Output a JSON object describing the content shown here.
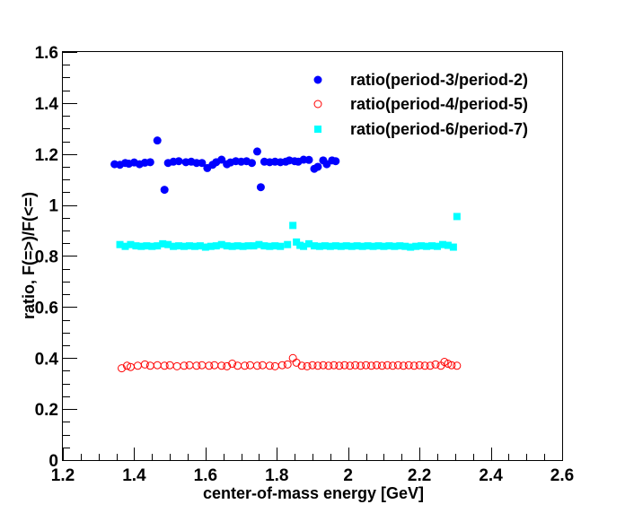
{
  "chart_data": {
    "type": "scatter",
    "xlabel": "center-of-mass energy [GeV]",
    "ylabel": "ratio, F(=>)/F(<=)",
    "xlim": [
      1.2,
      2.6
    ],
    "ylim": [
      0,
      1.6
    ],
    "x_ticks": [
      "1.2",
      "1.4",
      "1.6",
      "1.8",
      "2",
      "2.2",
      "2.4",
      "2.6"
    ],
    "y_ticks": [
      "0",
      "0.2",
      "0.4",
      "0.6",
      "0.8",
      "1",
      "1.2",
      "1.4",
      "1.6"
    ],
    "grid": false,
    "legend_position": "top-right",
    "series": [
      {
        "name": "ratio(period-3/period-2)",
        "marker": "filled-circle",
        "color": "#0000ff",
        "points": [
          [
            1.345,
            1.16
          ],
          [
            1.36,
            1.158
          ],
          [
            1.375,
            1.165
          ],
          [
            1.385,
            1.162
          ],
          [
            1.4,
            1.167
          ],
          [
            1.415,
            1.16
          ],
          [
            1.43,
            1.166
          ],
          [
            1.445,
            1.168
          ],
          [
            1.465,
            1.253
          ],
          [
            1.485,
            1.06
          ],
          [
            1.495,
            1.165
          ],
          [
            1.51,
            1.17
          ],
          [
            1.525,
            1.172
          ],
          [
            1.545,
            1.168
          ],
          [
            1.56,
            1.17
          ],
          [
            1.575,
            1.165
          ],
          [
            1.59,
            1.165
          ],
          [
            1.605,
            1.145
          ],
          [
            1.62,
            1.158
          ],
          [
            1.63,
            1.168
          ],
          [
            1.645,
            1.178
          ],
          [
            1.66,
            1.16
          ],
          [
            1.67,
            1.167
          ],
          [
            1.685,
            1.172
          ],
          [
            1.7,
            1.17
          ],
          [
            1.715,
            1.172
          ],
          [
            1.73,
            1.165
          ],
          [
            1.745,
            1.21
          ],
          [
            1.755,
            1.07
          ],
          [
            1.765,
            1.17
          ],
          [
            1.78,
            1.168
          ],
          [
            1.795,
            1.17
          ],
          [
            1.81,
            1.168
          ],
          [
            1.825,
            1.17
          ],
          [
            1.835,
            1.175
          ],
          [
            1.85,
            1.172
          ],
          [
            1.86,
            1.17
          ],
          [
            1.875,
            1.178
          ],
          [
            1.89,
            1.177
          ],
          [
            1.905,
            1.142
          ],
          [
            1.915,
            1.15
          ],
          [
            1.93,
            1.175
          ],
          [
            1.94,
            1.16
          ],
          [
            1.955,
            1.175
          ],
          [
            1.965,
            1.172
          ]
        ]
      },
      {
        "name": "ratio(period-4/period-5)",
        "marker": "open-circle",
        "color": "#ff0000",
        "points": [
          [
            1.365,
            0.36
          ],
          [
            1.38,
            0.37
          ],
          [
            1.39,
            0.365
          ],
          [
            1.41,
            0.37
          ],
          [
            1.43,
            0.375
          ],
          [
            1.445,
            0.37
          ],
          [
            1.465,
            0.372
          ],
          [
            1.485,
            0.37
          ],
          [
            1.5,
            0.372
          ],
          [
            1.52,
            0.368
          ],
          [
            1.54,
            0.37
          ],
          [
            1.555,
            0.372
          ],
          [
            1.575,
            0.37
          ],
          [
            1.59,
            0.372
          ],
          [
            1.61,
            0.37
          ],
          [
            1.625,
            0.372
          ],
          [
            1.645,
            0.37
          ],
          [
            1.66,
            0.368
          ],
          [
            1.675,
            0.378
          ],
          [
            1.69,
            0.37
          ],
          [
            1.71,
            0.37
          ],
          [
            1.725,
            0.372
          ],
          [
            1.745,
            0.37
          ],
          [
            1.76,
            0.372
          ],
          [
            1.78,
            0.37
          ],
          [
            1.795,
            0.368
          ],
          [
            1.815,
            0.372
          ],
          [
            1.83,
            0.375
          ],
          [
            1.845,
            0.4
          ],
          [
            1.855,
            0.382
          ],
          [
            1.87,
            0.37
          ],
          [
            1.885,
            0.368
          ],
          [
            1.9,
            0.372
          ],
          [
            1.915,
            0.37
          ],
          [
            1.93,
            0.372
          ],
          [
            1.945,
            0.37
          ],
          [
            1.96,
            0.372
          ],
          [
            1.975,
            0.37
          ],
          [
            1.99,
            0.372
          ],
          [
            2.005,
            0.37
          ],
          [
            2.02,
            0.372
          ],
          [
            2.035,
            0.37
          ],
          [
            2.05,
            0.372
          ],
          [
            2.065,
            0.37
          ],
          [
            2.08,
            0.372
          ],
          [
            2.095,
            0.37
          ],
          [
            2.11,
            0.372
          ],
          [
            2.125,
            0.37
          ],
          [
            2.14,
            0.372
          ],
          [
            2.155,
            0.37
          ],
          [
            2.17,
            0.372
          ],
          [
            2.185,
            0.37
          ],
          [
            2.2,
            0.372
          ],
          [
            2.215,
            0.37
          ],
          [
            2.23,
            0.37
          ],
          [
            2.245,
            0.375
          ],
          [
            2.26,
            0.37
          ],
          [
            2.27,
            0.385
          ],
          [
            2.28,
            0.378
          ],
          [
            2.29,
            0.372
          ],
          [
            2.305,
            0.37
          ]
        ]
      },
      {
        "name": "ratio(period-6/period-7)",
        "marker": "filled-square",
        "color": "#00ffff",
        "points": [
          [
            1.36,
            0.845
          ],
          [
            1.375,
            0.838
          ],
          [
            1.39,
            0.845
          ],
          [
            1.405,
            0.84
          ],
          [
            1.42,
            0.838
          ],
          [
            1.435,
            0.84
          ],
          [
            1.45,
            0.838
          ],
          [
            1.465,
            0.84
          ],
          [
            1.48,
            0.848
          ],
          [
            1.495,
            0.845
          ],
          [
            1.51,
            0.838
          ],
          [
            1.525,
            0.84
          ],
          [
            1.54,
            0.838
          ],
          [
            1.555,
            0.84
          ],
          [
            1.57,
            0.838
          ],
          [
            1.585,
            0.84
          ],
          [
            1.6,
            0.835
          ],
          [
            1.615,
            0.838
          ],
          [
            1.63,
            0.84
          ],
          [
            1.645,
            0.845
          ],
          [
            1.66,
            0.84
          ],
          [
            1.675,
            0.838
          ],
          [
            1.69,
            0.84
          ],
          [
            1.705,
            0.838
          ],
          [
            1.72,
            0.84
          ],
          [
            1.735,
            0.84
          ],
          [
            1.75,
            0.845
          ],
          [
            1.765,
            0.84
          ],
          [
            1.78,
            0.838
          ],
          [
            1.795,
            0.84
          ],
          [
            1.81,
            0.838
          ],
          [
            1.83,
            0.845
          ],
          [
            1.845,
            0.92
          ],
          [
            1.855,
            0.855
          ],
          [
            1.865,
            0.842
          ],
          [
            1.875,
            0.838
          ],
          [
            1.89,
            0.848
          ],
          [
            1.905,
            0.84
          ],
          [
            1.92,
            0.838
          ],
          [
            1.935,
            0.84
          ],
          [
            1.95,
            0.838
          ],
          [
            1.965,
            0.84
          ],
          [
            1.98,
            0.838
          ],
          [
            1.995,
            0.84
          ],
          [
            2.01,
            0.838
          ],
          [
            2.025,
            0.84
          ],
          [
            2.04,
            0.838
          ],
          [
            2.055,
            0.84
          ],
          [
            2.07,
            0.838
          ],
          [
            2.085,
            0.84
          ],
          [
            2.1,
            0.838
          ],
          [
            2.115,
            0.84
          ],
          [
            2.13,
            0.838
          ],
          [
            2.145,
            0.84
          ],
          [
            2.16,
            0.838
          ],
          [
            2.175,
            0.835
          ],
          [
            2.19,
            0.838
          ],
          [
            2.205,
            0.84
          ],
          [
            2.22,
            0.838
          ],
          [
            2.235,
            0.84
          ],
          [
            2.25,
            0.838
          ],
          [
            2.265,
            0.845
          ],
          [
            2.28,
            0.842
          ],
          [
            2.295,
            0.835
          ],
          [
            2.305,
            0.955
          ]
        ]
      }
    ]
  }
}
